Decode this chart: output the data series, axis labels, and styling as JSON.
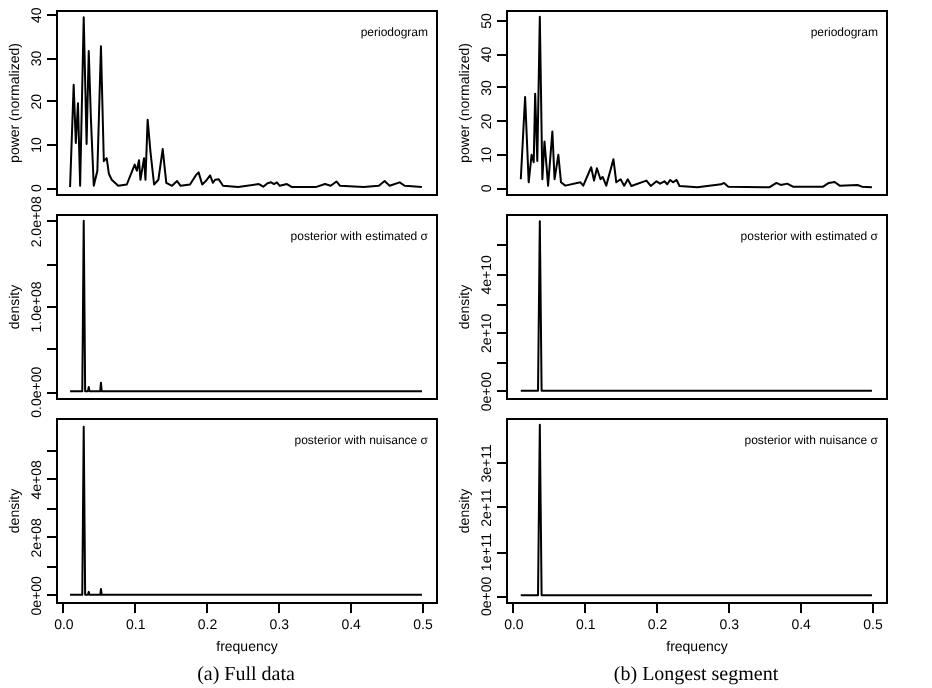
{
  "chart_data": [
    {
      "type": "line",
      "ylabel": "power (normalized)",
      "annotations": [
        "periodogram"
      ],
      "tick_labels": "y",
      "xlim": [
        -0.0096,
        0.5196
      ],
      "ylim": [
        -1.6,
        41
      ],
      "yticks": [
        0,
        10,
        20,
        30,
        40
      ],
      "x": [
        0.01,
        0.015,
        0.018,
        0.021,
        0.024,
        0.029,
        0.033,
        0.036,
        0.039,
        0.043,
        0.048,
        0.053,
        0.057,
        0.061,
        0.064,
        0.068,
        0.077,
        0.089,
        0.095,
        0.1,
        0.103,
        0.106,
        0.108,
        0.113,
        0.115,
        0.118,
        0.122,
        0.127,
        0.133,
        0.139,
        0.144,
        0.152,
        0.159,
        0.164,
        0.177,
        0.185,
        0.189,
        0.194,
        0.199,
        0.205,
        0.209,
        0.212,
        0.217,
        0.223,
        0.244,
        0.273,
        0.279,
        0.285,
        0.29,
        0.294,
        0.298,
        0.302,
        0.312,
        0.319,
        0.352,
        0.365,
        0.373,
        0.381,
        0.386,
        0.419,
        0.44,
        0.448,
        0.455,
        0.469,
        0.476,
        0.5
      ],
      "series": [
        {
          "color": "#000000",
          "values": [
            0,
            23.7,
            10.2,
            19.4,
            0.3,
            39.3,
            10,
            31.5,
            15.9,
            0.3,
            3.8,
            32.6,
            6,
            6.7,
            3.1,
            1.7,
            0.3,
            0.6,
            3.1,
            5.2,
            3.8,
            6.2,
            1.7,
            6.7,
            1.7,
            15.6,
            8.1,
            0.6,
            1.7,
            8.8,
            1,
            0.3,
            1.4,
            0.3,
            0.6,
            2.7,
            3.4,
            0.6,
            1.4,
            2.7,
            1,
            1.7,
            1.8,
            0.3,
            0,
            0.7,
            0.1,
            0.9,
            1.1,
            0.7,
            1.1,
            0.3,
            0.7,
            0,
            0,
            0.7,
            0.3,
            1.3,
            0.3,
            0,
            0.3,
            1.4,
            0.3,
            1.1,
            0.3,
            0
          ]
        }
      ]
    },
    {
      "type": "line",
      "ylabel": "density",
      "annotations": [
        "posterior with estimated σ"
      ],
      "tick_labels": "y",
      "xlim": [
        -0.0096,
        0.5196
      ],
      "ylim": [
        -8000000,
        208000000
      ],
      "yticks": [
        {
          "value": 0,
          "label": "0.0e+00"
        },
        {
          "value": 50000000,
          "label": null
        },
        {
          "value": 100000000,
          "label": "1.0e+08"
        },
        {
          "value": 150000000,
          "label": null
        },
        {
          "value": 200000000,
          "label": "2.0e+08"
        }
      ],
      "x": [
        0.01,
        0.027,
        0.029,
        0.031,
        0.035,
        0.036,
        0.037,
        0.052,
        0.053,
        0.054,
        0.5
      ],
      "series": [
        {
          "color": "#000000",
          "values": [
            0,
            0,
            200000000,
            0,
            0,
            5000000,
            0,
            0,
            10000000,
            0,
            0
          ]
        }
      ]
    },
    {
      "type": "line",
      "ylabel": "density",
      "xlabel": "frequency",
      "annotations": [
        "posterior with nuisance σ",
        "(a) Full data"
      ],
      "xlim": [
        -0.0096,
        0.5196
      ],
      "ylim": [
        -25000000,
        610000000
      ],
      "yticks": [
        {
          "value": 0,
          "label": "0e+00"
        },
        {
          "value": 100000000,
          "label": null
        },
        {
          "value": 200000000,
          "label": "2e+08"
        },
        {
          "value": 300000000,
          "label": null
        },
        {
          "value": 400000000,
          "label": "4e+08"
        },
        {
          "value": 500000000,
          "label": null
        }
      ],
      "xticks": [
        {
          "value": 0,
          "label": "0.0"
        },
        {
          "value": 0.1,
          "label": "0.1"
        },
        {
          "value": 0.2,
          "label": "0.2"
        },
        {
          "value": 0.3,
          "label": "0.3"
        },
        {
          "value": 0.4,
          "label": "0.4"
        },
        {
          "value": 0.5,
          "label": "0.5"
        }
      ],
      "x": [
        0.01,
        0.027,
        0.029,
        0.031,
        0.035,
        0.036,
        0.037,
        0.052,
        0.053,
        0.054,
        0.5
      ],
      "series": [
        {
          "color": "#000000",
          "values": [
            0,
            0,
            580000000,
            0,
            0,
            10000000,
            0,
            0,
            20000000,
            0,
            0
          ]
        }
      ]
    },
    {
      "type": "line",
      "ylabel": "power (normalized)",
      "annotations": [
        "periodogram"
      ],
      "tick_labels": "y",
      "xlim": [
        -0.0096,
        0.5196
      ],
      "ylim": [
        -2,
        53
      ],
      "yticks": [
        0,
        10,
        20,
        30,
        40,
        50
      ],
      "x": [
        0.011,
        0.017,
        0.022,
        0.026,
        0.029,
        0.031,
        0.034,
        0.0375,
        0.041,
        0.044,
        0.047,
        0.049,
        0.055,
        0.058,
        0.0633,
        0.067,
        0.073,
        0.094,
        0.098,
        0.109,
        0.113,
        0.117,
        0.122,
        0.125,
        0.13,
        0.14,
        0.144,
        0.15,
        0.155,
        0.16,
        0.165,
        0.186,
        0.192,
        0.2,
        0.205,
        0.211,
        0.215,
        0.219,
        0.223,
        0.228,
        0.232,
        0.257,
        0.29,
        0.294,
        0.3,
        0.357,
        0.367,
        0.373,
        0.382,
        0.39,
        0.432,
        0.44,
        0.448,
        0.455,
        0.48,
        0.486,
        0.5
      ],
      "series": [
        {
          "color": "#000000",
          "values": [
            2.4,
            27,
            1.5,
            9.7,
            7.5,
            28,
            7.9,
            51,
            2.4,
            13.7,
            6,
            0.5,
            16.7,
            2.4,
            9.7,
            1.5,
            0.5,
            1.5,
            0.5,
            6,
            2,
            5.7,
            2.4,
            3.1,
            0.5,
            8.4,
            1.5,
            2.4,
            0.5,
            2.4,
            0.4,
            2,
            0.4,
            1.8,
            1.1,
            1.8,
            0.9,
            2.2,
            1.5,
            2.2,
            0.4,
            0,
            0.9,
            1.3,
            0.2,
            0,
            1.3,
            0.7,
            1.1,
            0.2,
            0.2,
            1.3,
            1.6,
            0.5,
            0.7,
            0.2,
            0
          ]
        }
      ]
    },
    {
      "type": "line",
      "ylabel": "density",
      "annotations": [
        "posterior with estimated σ"
      ],
      "tick_labels": "y",
      "xlim": [
        -0.0096,
        0.5196
      ],
      "ylim": [
        -2500000000,
        60500000000
      ],
      "yticks": [
        {
          "value": 0,
          "label": "0e+00"
        },
        {
          "value": 10000000000,
          "label": null
        },
        {
          "value": 20000000000,
          "label": "2e+10"
        },
        {
          "value": 30000000000,
          "label": null
        },
        {
          "value": 40000000000,
          "label": "4e+10"
        },
        {
          "value": 50000000000,
          "label": null
        }
      ],
      "x": [
        0.011,
        0.035,
        0.0375,
        0.04,
        0.5
      ],
      "series": [
        {
          "color": "#000000",
          "values": [
            0,
            0,
            58000000000,
            0,
            0
          ]
        }
      ]
    },
    {
      "type": "line",
      "ylabel": "density",
      "xlabel": "frequency",
      "annotations": [
        "posterior with nuisance σ",
        "(b) Longest segment"
      ],
      "xlim": [
        -0.0096,
        0.5196
      ],
      "ylim": [
        -15000000000,
        400000000000
      ],
      "yticks": [
        {
          "value": 0,
          "label": "0e+00"
        },
        {
          "value": 100000000000,
          "label": "1e+11"
        },
        {
          "value": 200000000000,
          "label": "2e+11"
        },
        {
          "value": 300000000000,
          "label": "3e+11"
        }
      ],
      "xticks": [
        {
          "value": 0,
          "label": "0.0"
        },
        {
          "value": 0.1,
          "label": "0.1"
        },
        {
          "value": 0.2,
          "label": "0.2"
        },
        {
          "value": 0.3,
          "label": "0.3"
        },
        {
          "value": 0.4,
          "label": "0.4"
        },
        {
          "value": 0.5,
          "label": "0.5"
        }
      ],
      "x": [
        0.011,
        0.035,
        0.0375,
        0.04,
        0.5
      ],
      "series": [
        {
          "color": "#000000",
          "values": [
            0,
            0,
            385000000000,
            0,
            0
          ]
        }
      ]
    }
  ]
}
